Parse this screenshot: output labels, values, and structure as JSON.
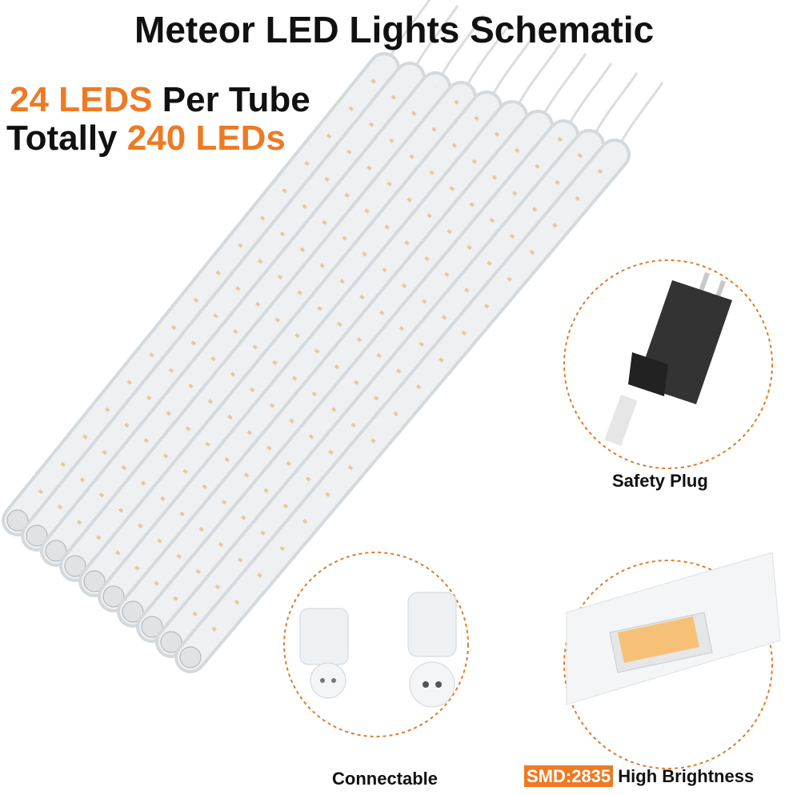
{
  "title": "Meteor LED Lights Schematic",
  "headline": {
    "line1": {
      "highlight": "24 LEDS",
      "text": "Per Tube"
    },
    "line2": {
      "text": "Totally",
      "highlight": "240 LEDs"
    }
  },
  "callouts": [
    {
      "label": "Safety Plug"
    },
    {
      "label": "Connectable"
    },
    {
      "badge": "SMD:2835",
      "label": "High Brightness"
    }
  ]
}
